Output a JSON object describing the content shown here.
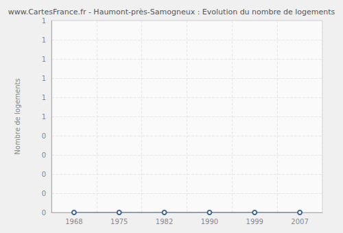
{
  "chart_data": {
    "type": "line",
    "title": "www.CartesFrance.fr - Haumont-près-Samogneux : Evolution du nombre de logements",
    "y_label": "Nombre de logements",
    "categories": [
      "1968",
      "1975",
      "1982",
      "1990",
      "1999",
      "2007"
    ],
    "values": [
      0,
      0,
      0,
      0,
      0,
      0
    ],
    "color": "#3e6597",
    "marker": "circle",
    "ylim": [
      0,
      1
    ],
    "yticks": [
      0,
      {
        "value": 0.1,
        "label": "0"
      },
      {
        "value": 0.2,
        "label": "0"
      },
      {
        "value": 0.3,
        "label": "0"
      },
      {
        "value": 0.4,
        "label": "0"
      },
      {
        "value": 0.5,
        "label": "1"
      },
      {
        "value": 0.6,
        "label": "1"
      },
      {
        "value": 0.7,
        "label": "1"
      },
      {
        "value": 0.8,
        "label": "1"
      },
      {
        "value": 0.9,
        "label": "1"
      },
      1
    ],
    "grid": true
  }
}
